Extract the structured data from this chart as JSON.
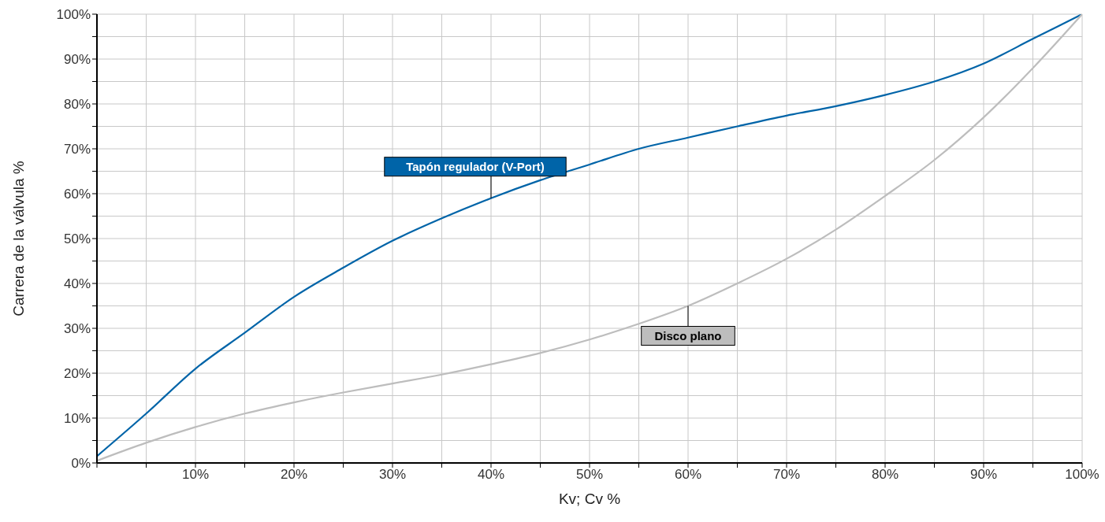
{
  "chart_data": {
    "type": "line",
    "xlabel": "Kv; Cv %",
    "ylabel": "Carrera de la válvula %",
    "x": [
      0,
      5,
      10,
      15,
      20,
      25,
      30,
      35,
      40,
      45,
      50,
      55,
      60,
      65,
      70,
      75,
      80,
      85,
      90,
      95,
      100
    ],
    "series": [
      {
        "name": "Tapón regulador (V-Port)",
        "color": "#0064a8",
        "values": [
          1.5,
          11,
          21,
          29,
          37,
          43.5,
          49.5,
          54.5,
          59,
          63,
          66.5,
          70,
          72.5,
          75,
          77.4,
          79.5,
          82,
          85,
          89,
          94.5,
          100
        ]
      },
      {
        "name": "Disco plano",
        "color": "#bdbdbd",
        "values": [
          0.5,
          4.5,
          8,
          11,
          13.5,
          15.7,
          17.7,
          19.7,
          22,
          24.5,
          27.5,
          31,
          35,
          40,
          45.5,
          52,
          59.5,
          67.5,
          77,
          88,
          100
        ]
      }
    ],
    "xlim": [
      0,
      100
    ],
    "ylim": [
      0,
      100
    ],
    "xticks": [
      {
        "value": 0,
        "label": null
      },
      {
        "value": 5,
        "label": null
      },
      {
        "value": 10,
        "label": "10%"
      },
      {
        "value": 15,
        "label": null
      },
      {
        "value": 20,
        "label": "20%"
      },
      {
        "value": 25,
        "label": null
      },
      {
        "value": 30,
        "label": "30%"
      },
      {
        "value": 35,
        "label": null
      },
      {
        "value": 40,
        "label": "40%"
      },
      {
        "value": 45,
        "label": null
      },
      {
        "value": 50,
        "label": "50%"
      },
      {
        "value": 55,
        "label": null
      },
      {
        "value": 60,
        "label": "60%"
      },
      {
        "value": 65,
        "label": null
      },
      {
        "value": 70,
        "label": "70%"
      },
      {
        "value": 75,
        "label": null
      },
      {
        "value": 80,
        "label": "80%"
      },
      {
        "value": 85,
        "label": null
      },
      {
        "value": 90,
        "label": "90%"
      },
      {
        "value": 95,
        "label": null
      },
      {
        "value": 100,
        "label": "100%"
      }
    ],
    "yticks": [
      {
        "value": 0,
        "label": "0%"
      },
      {
        "value": 5,
        "label": null
      },
      {
        "value": 10,
        "label": "10%"
      },
      {
        "value": 15,
        "label": null
      },
      {
        "value": 20,
        "label": "20%"
      },
      {
        "value": 25,
        "label": null
      },
      {
        "value": 30,
        "label": "30%"
      },
      {
        "value": 35,
        "label": null
      },
      {
        "value": 40,
        "label": "40%"
      },
      {
        "value": 45,
        "label": null
      },
      {
        "value": 50,
        "label": "50%"
      },
      {
        "value": 55,
        "label": null
      },
      {
        "value": 60,
        "label": "60%"
      },
      {
        "value": 65,
        "label": null
      },
      {
        "value": 70,
        "label": "70%"
      },
      {
        "value": 75,
        "label": null
      },
      {
        "value": 80,
        "label": "80%"
      },
      {
        "value": 85,
        "label": null
      },
      {
        "value": 90,
        "label": "90%"
      },
      {
        "value": 95,
        "label": null
      },
      {
        "value": 100,
        "label": "100%"
      }
    ],
    "grid": true,
    "legend": false,
    "marker": "none",
    "line_style": "solid"
  }
}
